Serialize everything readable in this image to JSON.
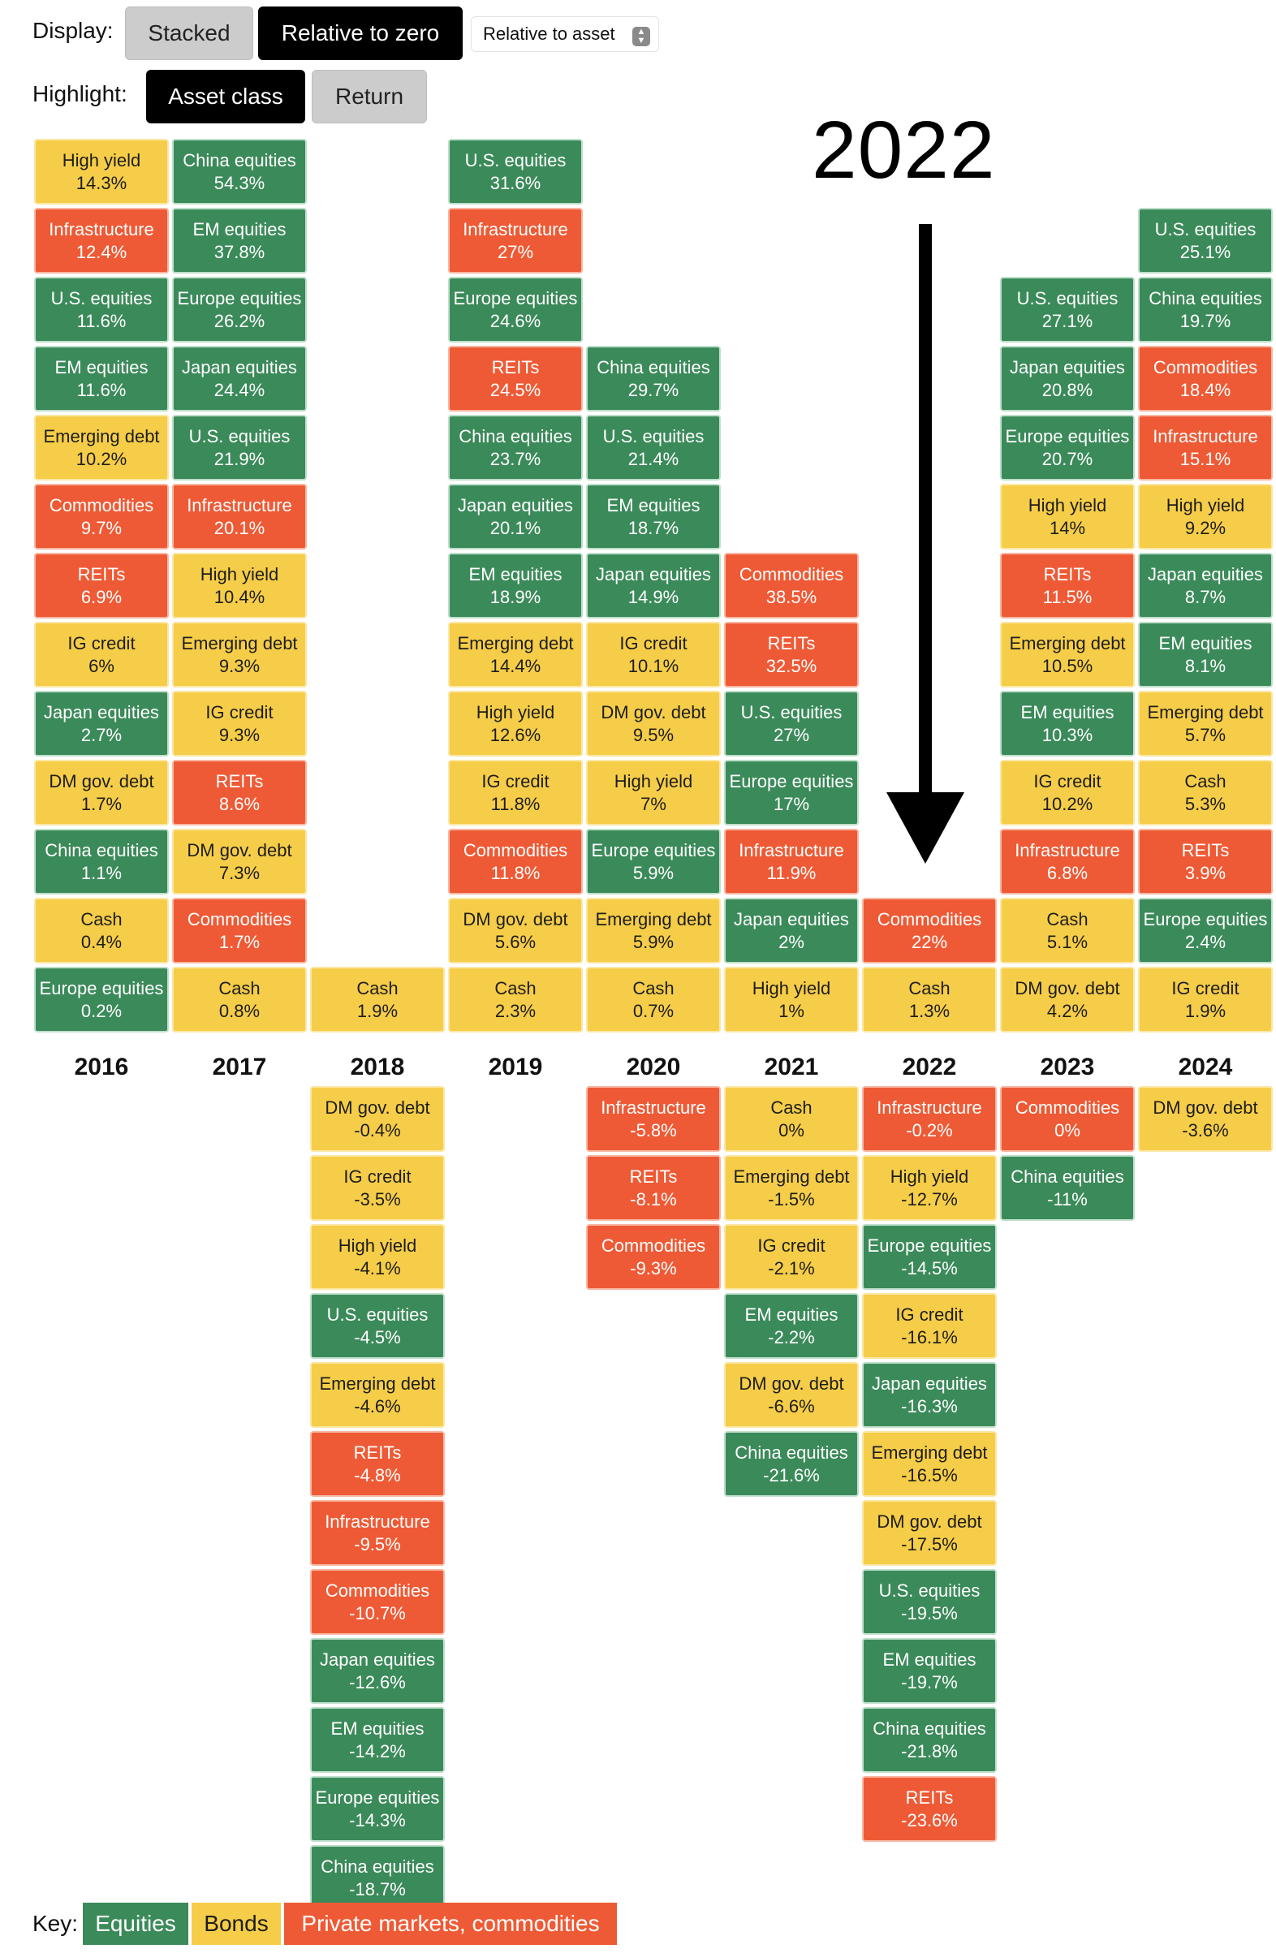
{
  "controls": {
    "display_label": "Display:",
    "display_options": [
      {
        "label": "Stacked",
        "active": false
      },
      {
        "label": "Relative to zero",
        "active": true
      }
    ],
    "display_select_value": "Relative to asset",
    "highlight_label": "Highlight:",
    "highlight_options": [
      {
        "label": "Asset class",
        "active": true
      },
      {
        "label": "Return",
        "active": false
      }
    ]
  },
  "annotation": {
    "label": "2022",
    "points_to_year": "2022"
  },
  "key": {
    "label": "Key:",
    "items": [
      {
        "label": "Equities",
        "class": "eq",
        "color": "#3b8a5a"
      },
      {
        "label": "Bonds",
        "class": "bd",
        "color": "#f6cd48"
      },
      {
        "label": "Private markets, commodities",
        "class": "pm",
        "color": "#ee5a35"
      }
    ]
  },
  "chart_data": {
    "type": "table",
    "title": "",
    "categories": [
      "2016",
      "2017",
      "2018",
      "2019",
      "2020",
      "2021",
      "2022",
      "2023",
      "2024"
    ],
    "asset_class_colors": {
      "eq": "#3b8a5a",
      "bd": "#f6cd48",
      "pm": "#ee5a35"
    },
    "years": [
      {
        "year": "2016",
        "positive": [
          {
            "asset": "High yield",
            "label": "14.3%",
            "value": 14.3,
            "cls": "bd"
          },
          {
            "asset": "Infrastructure",
            "label": "12.4%",
            "value": 12.4,
            "cls": "pm"
          },
          {
            "asset": "U.S. equities",
            "label": "11.6%",
            "value": 11.6,
            "cls": "eq"
          },
          {
            "asset": "EM equities",
            "label": "11.6%",
            "value": 11.6,
            "cls": "eq"
          },
          {
            "asset": "Emerging debt",
            "label": "10.2%",
            "value": 10.2,
            "cls": "bd"
          },
          {
            "asset": "Commodities",
            "label": "9.7%",
            "value": 9.7,
            "cls": "pm"
          },
          {
            "asset": "REITs",
            "label": "6.9%",
            "value": 6.9,
            "cls": "pm"
          },
          {
            "asset": "IG credit",
            "label": "6%",
            "value": 6,
            "cls": "bd"
          },
          {
            "asset": "Japan equities",
            "label": "2.7%",
            "value": 2.7,
            "cls": "eq"
          },
          {
            "asset": "DM gov. debt",
            "label": "1.7%",
            "value": 1.7,
            "cls": "bd"
          },
          {
            "asset": "China equities",
            "label": "1.1%",
            "value": 1.1,
            "cls": "eq"
          },
          {
            "asset": "Cash",
            "label": "0.4%",
            "value": 0.4,
            "cls": "bd"
          },
          {
            "asset": "Europe equities",
            "label": "0.2%",
            "value": 0.2,
            "cls": "eq"
          }
        ],
        "negative": []
      },
      {
        "year": "2017",
        "positive": [
          {
            "asset": "China equities",
            "label": "54.3%",
            "value": 54.3,
            "cls": "eq"
          },
          {
            "asset": "EM equities",
            "label": "37.8%",
            "value": 37.8,
            "cls": "eq"
          },
          {
            "asset": "Europe equities",
            "label": "26.2%",
            "value": 26.2,
            "cls": "eq"
          },
          {
            "asset": "Japan equities",
            "label": "24.4%",
            "value": 24.4,
            "cls": "eq"
          },
          {
            "asset": "U.S. equities",
            "label": "21.9%",
            "value": 21.9,
            "cls": "eq"
          },
          {
            "asset": "Infrastructure",
            "label": "20.1%",
            "value": 20.1,
            "cls": "pm"
          },
          {
            "asset": "High yield",
            "label": "10.4%",
            "value": 10.4,
            "cls": "bd"
          },
          {
            "asset": "Emerging debt",
            "label": "9.3%",
            "value": 9.3,
            "cls": "bd"
          },
          {
            "asset": "IG credit",
            "label": "9.3%",
            "value": 9.3,
            "cls": "bd"
          },
          {
            "asset": "REITs",
            "label": "8.6%",
            "value": 8.6,
            "cls": "pm"
          },
          {
            "asset": "DM gov. debt",
            "label": "7.3%",
            "value": 7.3,
            "cls": "bd"
          },
          {
            "asset": "Commodities",
            "label": "1.7%",
            "value": 1.7,
            "cls": "pm"
          },
          {
            "asset": "Cash",
            "label": "0.8%",
            "value": 0.8,
            "cls": "bd"
          }
        ],
        "negative": []
      },
      {
        "year": "2018",
        "positive": [
          {
            "asset": "Cash",
            "label": "1.9%",
            "value": 1.9,
            "cls": "bd"
          }
        ],
        "negative": [
          {
            "asset": "DM gov. debt",
            "label": "-0.4%",
            "value": -0.4,
            "cls": "bd"
          },
          {
            "asset": "IG credit",
            "label": "-3.5%",
            "value": -3.5,
            "cls": "bd"
          },
          {
            "asset": "High yield",
            "label": "-4.1%",
            "value": -4.1,
            "cls": "bd"
          },
          {
            "asset": "U.S. equities",
            "label": "-4.5%",
            "value": -4.5,
            "cls": "eq"
          },
          {
            "asset": "Emerging debt",
            "label": "-4.6%",
            "value": -4.6,
            "cls": "bd"
          },
          {
            "asset": "REITs",
            "label": "-4.8%",
            "value": -4.8,
            "cls": "pm"
          },
          {
            "asset": "Infrastructure",
            "label": "-9.5%",
            "value": -9.5,
            "cls": "pm"
          },
          {
            "asset": "Commodities",
            "label": "-10.7%",
            "value": -10.7,
            "cls": "pm"
          },
          {
            "asset": "Japan equities",
            "label": "-12.6%",
            "value": -12.6,
            "cls": "eq"
          },
          {
            "asset": "EM equities",
            "label": "-14.2%",
            "value": -14.2,
            "cls": "eq"
          },
          {
            "asset": "Europe equities",
            "label": "-14.3%",
            "value": -14.3,
            "cls": "eq"
          },
          {
            "asset": "China equities",
            "label": "-18.7%",
            "value": -18.7,
            "cls": "eq"
          }
        ]
      },
      {
        "year": "2019",
        "positive": [
          {
            "asset": "U.S. equities",
            "label": "31.6%",
            "value": 31.6,
            "cls": "eq"
          },
          {
            "asset": "Infrastructure",
            "label": "27%",
            "value": 27,
            "cls": "pm"
          },
          {
            "asset": "Europe equities",
            "label": "24.6%",
            "value": 24.6,
            "cls": "eq"
          },
          {
            "asset": "REITs",
            "label": "24.5%",
            "value": 24.5,
            "cls": "pm"
          },
          {
            "asset": "China equities",
            "label": "23.7%",
            "value": 23.7,
            "cls": "eq"
          },
          {
            "asset": "Japan equities",
            "label": "20.1%",
            "value": 20.1,
            "cls": "eq"
          },
          {
            "asset": "EM equities",
            "label": "18.9%",
            "value": 18.9,
            "cls": "eq"
          },
          {
            "asset": "Emerging debt",
            "label": "14.4%",
            "value": 14.4,
            "cls": "bd"
          },
          {
            "asset": "High yield",
            "label": "12.6%",
            "value": 12.6,
            "cls": "bd"
          },
          {
            "asset": "IG credit",
            "label": "11.8%",
            "value": 11.8,
            "cls": "bd"
          },
          {
            "asset": "Commodities",
            "label": "11.8%",
            "value": 11.8,
            "cls": "pm"
          },
          {
            "asset": "DM gov. debt",
            "label": "5.6%",
            "value": 5.6,
            "cls": "bd"
          },
          {
            "asset": "Cash",
            "label": "2.3%",
            "value": 2.3,
            "cls": "bd"
          }
        ],
        "negative": []
      },
      {
        "year": "2020",
        "positive": [
          {
            "asset": "China equities",
            "label": "29.7%",
            "value": 29.7,
            "cls": "eq"
          },
          {
            "asset": "U.S. equities",
            "label": "21.4%",
            "value": 21.4,
            "cls": "eq"
          },
          {
            "asset": "EM equities",
            "label": "18.7%",
            "value": 18.7,
            "cls": "eq"
          },
          {
            "asset": "Japan equities",
            "label": "14.9%",
            "value": 14.9,
            "cls": "eq"
          },
          {
            "asset": "IG credit",
            "label": "10.1%",
            "value": 10.1,
            "cls": "bd"
          },
          {
            "asset": "DM gov. debt",
            "label": "9.5%",
            "value": 9.5,
            "cls": "bd"
          },
          {
            "asset": "High yield",
            "label": "7%",
            "value": 7,
            "cls": "bd"
          },
          {
            "asset": "Europe equities",
            "label": "5.9%",
            "value": 5.9,
            "cls": "eq"
          },
          {
            "asset": "Emerging debt",
            "label": "5.9%",
            "value": 5.9,
            "cls": "bd"
          },
          {
            "asset": "Cash",
            "label": "0.7%",
            "value": 0.7,
            "cls": "bd"
          }
        ],
        "negative": [
          {
            "asset": "Infrastructure",
            "label": "-5.8%",
            "value": -5.8,
            "cls": "pm"
          },
          {
            "asset": "REITs",
            "label": "-8.1%",
            "value": -8.1,
            "cls": "pm"
          },
          {
            "asset": "Commodities",
            "label": "-9.3%",
            "value": -9.3,
            "cls": "pm"
          }
        ]
      },
      {
        "year": "2021",
        "positive": [
          {
            "asset": "Commodities",
            "label": "38.5%",
            "value": 38.5,
            "cls": "pm"
          },
          {
            "asset": "REITs",
            "label": "32.5%",
            "value": 32.5,
            "cls": "pm"
          },
          {
            "asset": "U.S. equities",
            "label": "27%",
            "value": 27,
            "cls": "eq"
          },
          {
            "asset": "Europe equities",
            "label": "17%",
            "value": 17,
            "cls": "eq"
          },
          {
            "asset": "Infrastructure",
            "label": "11.9%",
            "value": 11.9,
            "cls": "pm"
          },
          {
            "asset": "Japan equities",
            "label": "2%",
            "value": 2,
            "cls": "eq"
          },
          {
            "asset": "High yield",
            "label": "1%",
            "value": 1,
            "cls": "bd"
          }
        ],
        "negative": [
          {
            "asset": "Cash",
            "label": "0%",
            "value": 0,
            "cls": "bd"
          },
          {
            "asset": "Emerging debt",
            "label": "-1.5%",
            "value": -1.5,
            "cls": "bd"
          },
          {
            "asset": "IG credit",
            "label": "-2.1%",
            "value": -2.1,
            "cls": "bd"
          },
          {
            "asset": "EM equities",
            "label": "-2.2%",
            "value": -2.2,
            "cls": "eq"
          },
          {
            "asset": "DM gov. debt",
            "label": "-6.6%",
            "value": -6.6,
            "cls": "bd"
          },
          {
            "asset": "China equities",
            "label": "-21.6%",
            "value": -21.6,
            "cls": "eq"
          }
        ]
      },
      {
        "year": "2022",
        "positive": [
          {
            "asset": "Commodities",
            "label": "22%",
            "value": 22,
            "cls": "pm"
          },
          {
            "asset": "Cash",
            "label": "1.3%",
            "value": 1.3,
            "cls": "bd"
          }
        ],
        "negative": [
          {
            "asset": "Infrastructure",
            "label": "-0.2%",
            "value": -0.2,
            "cls": "pm"
          },
          {
            "asset": "High yield",
            "label": "-12.7%",
            "value": -12.7,
            "cls": "bd"
          },
          {
            "asset": "Europe equities",
            "label": "-14.5%",
            "value": -14.5,
            "cls": "eq"
          },
          {
            "asset": "IG credit",
            "label": "-16.1%",
            "value": -16.1,
            "cls": "bd"
          },
          {
            "asset": "Japan equities",
            "label": "-16.3%",
            "value": -16.3,
            "cls": "eq"
          },
          {
            "asset": "Emerging debt",
            "label": "-16.5%",
            "value": -16.5,
            "cls": "bd"
          },
          {
            "asset": "DM gov. debt",
            "label": "-17.5%",
            "value": -17.5,
            "cls": "bd"
          },
          {
            "asset": "U.S. equities",
            "label": "-19.5%",
            "value": -19.5,
            "cls": "eq"
          },
          {
            "asset": "EM equities",
            "label": "-19.7%",
            "value": -19.7,
            "cls": "eq"
          },
          {
            "asset": "China equities",
            "label": "-21.8%",
            "value": -21.8,
            "cls": "eq"
          },
          {
            "asset": "REITs",
            "label": "-23.6%",
            "value": -23.6,
            "cls": "pm"
          }
        ]
      },
      {
        "year": "2023",
        "positive": [
          {
            "asset": "U.S. equities",
            "label": "27.1%",
            "value": 27.1,
            "cls": "eq"
          },
          {
            "asset": "Japan equities",
            "label": "20.8%",
            "value": 20.8,
            "cls": "eq"
          },
          {
            "asset": "Europe equities",
            "label": "20.7%",
            "value": 20.7,
            "cls": "eq"
          },
          {
            "asset": "High yield",
            "label": "14%",
            "value": 14,
            "cls": "bd"
          },
          {
            "asset": "REITs",
            "label": "11.5%",
            "value": 11.5,
            "cls": "pm"
          },
          {
            "asset": "Emerging debt",
            "label": "10.5%",
            "value": 10.5,
            "cls": "bd"
          },
          {
            "asset": "EM equities",
            "label": "10.3%",
            "value": 10.3,
            "cls": "eq"
          },
          {
            "asset": "IG credit",
            "label": "10.2%",
            "value": 10.2,
            "cls": "bd"
          },
          {
            "asset": "Infrastructure",
            "label": "6.8%",
            "value": 6.8,
            "cls": "pm"
          },
          {
            "asset": "Cash",
            "label": "5.1%",
            "value": 5.1,
            "cls": "bd"
          },
          {
            "asset": "DM gov. debt",
            "label": "4.2%",
            "value": 4.2,
            "cls": "bd"
          }
        ],
        "negative": [
          {
            "asset": "Commodities",
            "label": "0%",
            "value": 0,
            "cls": "pm"
          },
          {
            "asset": "China equities",
            "label": "-11%",
            "value": -11,
            "cls": "eq"
          }
        ]
      },
      {
        "year": "2024",
        "positive": [
          {
            "asset": "U.S. equities",
            "label": "25.1%",
            "value": 25.1,
            "cls": "eq"
          },
          {
            "asset": "China equities",
            "label": "19.7%",
            "value": 19.7,
            "cls": "eq"
          },
          {
            "asset": "Commodities",
            "label": "18.4%",
            "value": 18.4,
            "cls": "pm"
          },
          {
            "asset": "Infrastructure",
            "label": "15.1%",
            "value": 15.1,
            "cls": "pm"
          },
          {
            "asset": "High yield",
            "label": "9.2%",
            "value": 9.2,
            "cls": "bd"
          },
          {
            "asset": "Japan equities",
            "label": "8.7%",
            "value": 8.7,
            "cls": "eq"
          },
          {
            "asset": "EM equities",
            "label": "8.1%",
            "value": 8.1,
            "cls": "eq"
          },
          {
            "asset": "Emerging debt",
            "label": "5.7%",
            "value": 5.7,
            "cls": "bd"
          },
          {
            "asset": "Cash",
            "label": "5.3%",
            "value": 5.3,
            "cls": "bd"
          },
          {
            "asset": "REITs",
            "label": "3.9%",
            "value": 3.9,
            "cls": "pm"
          },
          {
            "asset": "Europe equities",
            "label": "2.4%",
            "value": 2.4,
            "cls": "eq"
          },
          {
            "asset": "IG credit",
            "label": "1.9%",
            "value": 1.9,
            "cls": "bd"
          }
        ],
        "negative": [
          {
            "asset": "DM gov. debt",
            "label": "-3.6%",
            "value": -3.6,
            "cls": "bd"
          }
        ]
      }
    ]
  }
}
